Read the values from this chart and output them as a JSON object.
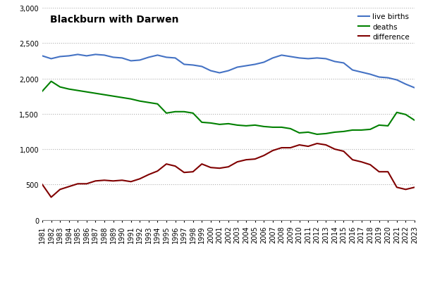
{
  "title": "Blackburn with Darwen",
  "years": [
    1981,
    1982,
    1983,
    1984,
    1985,
    1986,
    1987,
    1988,
    1989,
    1990,
    1991,
    1992,
    1993,
    1994,
    1995,
    1996,
    1997,
    1998,
    1999,
    2000,
    2001,
    2002,
    2003,
    2004,
    2005,
    2006,
    2007,
    2008,
    2009,
    2010,
    2011,
    2012,
    2013,
    2014,
    2015,
    2016,
    2017,
    2018,
    2019,
    2020,
    2021,
    2022,
    2023
  ],
  "live_births": [
    2320,
    2280,
    2310,
    2320,
    2340,
    2320,
    2340,
    2330,
    2300,
    2290,
    2250,
    2260,
    2300,
    2330,
    2300,
    2290,
    2200,
    2190,
    2170,
    2110,
    2080,
    2110,
    2160,
    2180,
    2200,
    2230,
    2290,
    2330,
    2310,
    2290,
    2280,
    2290,
    2280,
    2240,
    2220,
    2120,
    2090,
    2060,
    2020,
    2010,
    1980,
    1920,
    1869
  ],
  "deaths": [
    1820,
    1960,
    1880,
    1850,
    1830,
    1810,
    1790,
    1770,
    1750,
    1730,
    1710,
    1680,
    1660,
    1640,
    1510,
    1530,
    1530,
    1510,
    1380,
    1370,
    1350,
    1360,
    1340,
    1330,
    1340,
    1320,
    1310,
    1310,
    1290,
    1230,
    1240,
    1210,
    1220,
    1240,
    1250,
    1270,
    1270,
    1280,
    1340,
    1330,
    1520,
    1490,
    1409
  ],
  "difference": [
    500,
    320,
    430,
    470,
    510,
    510,
    550,
    560,
    550,
    560,
    540,
    580,
    640,
    690,
    790,
    760,
    670,
    680,
    790,
    740,
    730,
    750,
    820,
    850,
    860,
    910,
    980,
    1020,
    1020,
    1060,
    1040,
    1080,
    1060,
    1000,
    970,
    850,
    820,
    780,
    680,
    680,
    460,
    430,
    460
  ],
  "live_births_color": "#4472C4",
  "deaths_color": "#008000",
  "difference_color": "#800000",
  "ylim": [
    0,
    3000
  ],
  "yticks": [
    0,
    500,
    1000,
    1500,
    2000,
    2500,
    3000
  ],
  "background_color": "#ffffff",
  "grid_color": "#b0b0b0",
  "title_fontsize": 10,
  "tick_fontsize": 7,
  "legend_labels": [
    "live births",
    "deaths",
    "difference"
  ]
}
